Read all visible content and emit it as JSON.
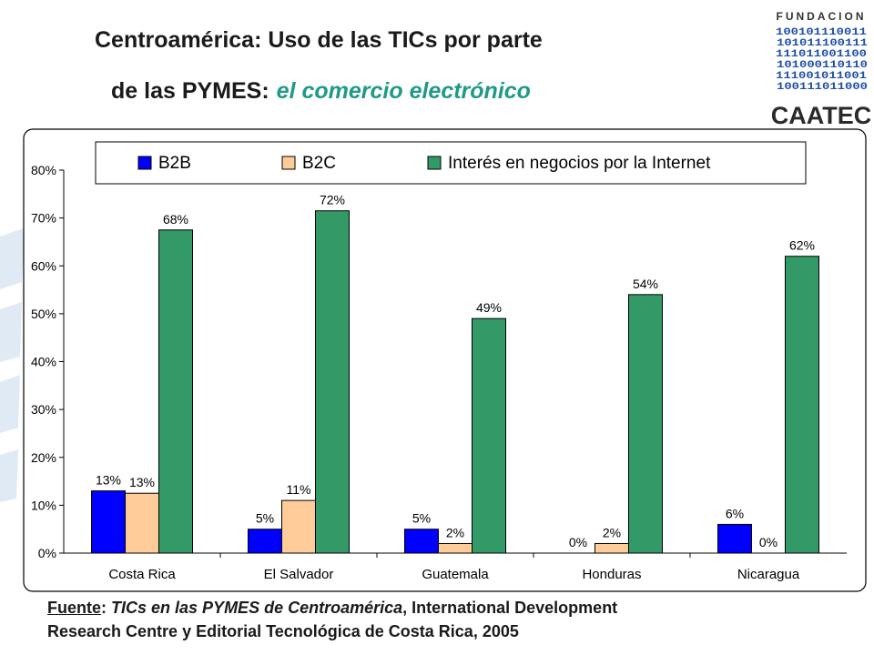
{
  "slide": {
    "title_line1": "Centroamérica: Uso de las TICs por parte",
    "title_line2_main": "de las PYMES:",
    "title_line2_accent": "el comercio electrónico",
    "accent_color": "#1f9a86"
  },
  "logo": {
    "top_text": "FUNDACION",
    "bottom_text": "CAATEC",
    "binary_rows": [
      "100101110011",
      "101011100111",
      "111011001100",
      "101000110110",
      "111001011001",
      "100111011000"
    ]
  },
  "source": {
    "label": "Fuente",
    "sep": ": ",
    "work": "TICs en las PYMES de Centroamérica",
    "rest_line1": ", International Development",
    "line2": "Research Centre y Editorial Tecnológica de Costa Rica, 2005"
  },
  "chart_data": {
    "type": "bar",
    "categories": [
      "Costa Rica",
      "El Salvador",
      "Guatemala",
      "Honduras",
      "Nicaragua"
    ],
    "series": [
      {
        "name": "B2B",
        "values": [
          13,
          5,
          5,
          0,
          6
        ],
        "labels": [
          "13%",
          "5%",
          "5%",
          "0%",
          "6%"
        ],
        "color": "#0000ff"
      },
      {
        "name": "B2C",
        "values": [
          12.5,
          11,
          2,
          2,
          0
        ],
        "labels": [
          "13%",
          "11%",
          "2%",
          "2%",
          "0%"
        ],
        "color": "#ffcc99"
      },
      {
        "name": "Interés en negocios por la Internet",
        "values": [
          67.5,
          71.5,
          49,
          54,
          62
        ],
        "labels": [
          "68%",
          "72%",
          "49%",
          "54%",
          "62%"
        ],
        "color": "#339966"
      }
    ],
    "ylim": [
      0,
      80
    ],
    "yticks": [
      "0%",
      "10%",
      "20%",
      "30%",
      "40%",
      "50%",
      "60%",
      "70%",
      "80%"
    ],
    "legend_position": "top",
    "grid": false
  }
}
